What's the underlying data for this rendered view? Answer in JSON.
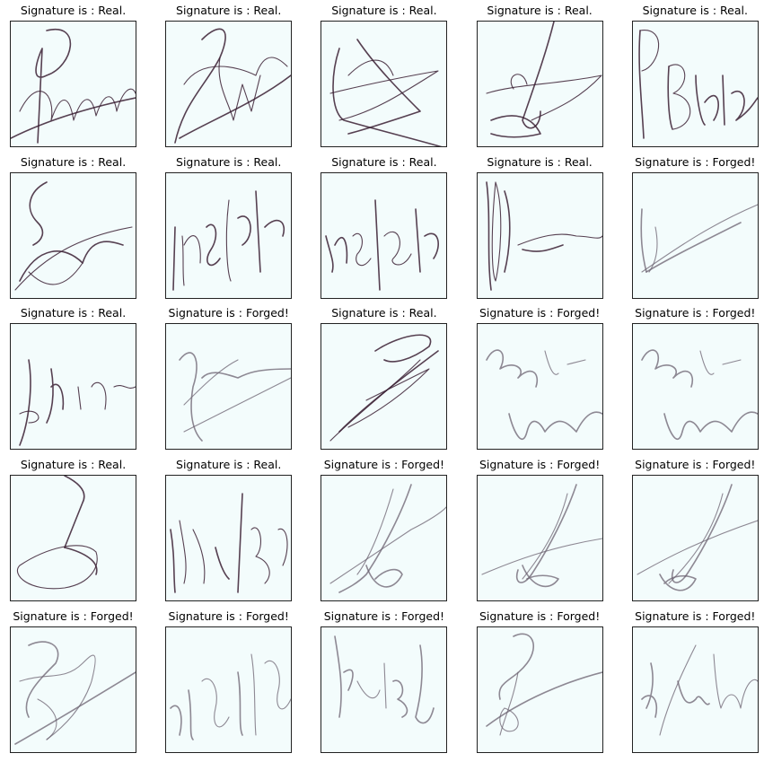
{
  "colors": {
    "panel_background": "#f3fcfc",
    "panel_border": "#222222",
    "ink_real": "#3a1f33",
    "ink_forged": "#6b6270"
  },
  "panels": [
    {
      "title": "Signature is : Real."
    },
    {
      "title": "Signature is : Real."
    },
    {
      "title": "Signature is : Real."
    },
    {
      "title": "Signature is : Real."
    },
    {
      "title": "Signature is : Real."
    },
    {
      "title": "Signature is : Real."
    },
    {
      "title": "Signature is : Real."
    },
    {
      "title": "Signature is : Real."
    },
    {
      "title": "Signature is : Real."
    },
    {
      "title": "Signature is : Forged!"
    },
    {
      "title": "Signature is : Real."
    },
    {
      "title": "Signature is : Forged!"
    },
    {
      "title": "Signature is : Real."
    },
    {
      "title": "Signature is : Forged!"
    },
    {
      "title": "Signature is : Forged!"
    },
    {
      "title": "Signature is : Real."
    },
    {
      "title": "Signature is : Real."
    },
    {
      "title": "Signature is : Forged!"
    },
    {
      "title": "Signature is : Forged!"
    },
    {
      "title": "Signature is : Forged!"
    },
    {
      "title": "Signature is : Forged!"
    },
    {
      "title": "Signature is : Forged!"
    },
    {
      "title": "Signature is : Forged!"
    },
    {
      "title": "Signature is : Forged!"
    },
    {
      "title": "Signature is : Forged!"
    }
  ]
}
